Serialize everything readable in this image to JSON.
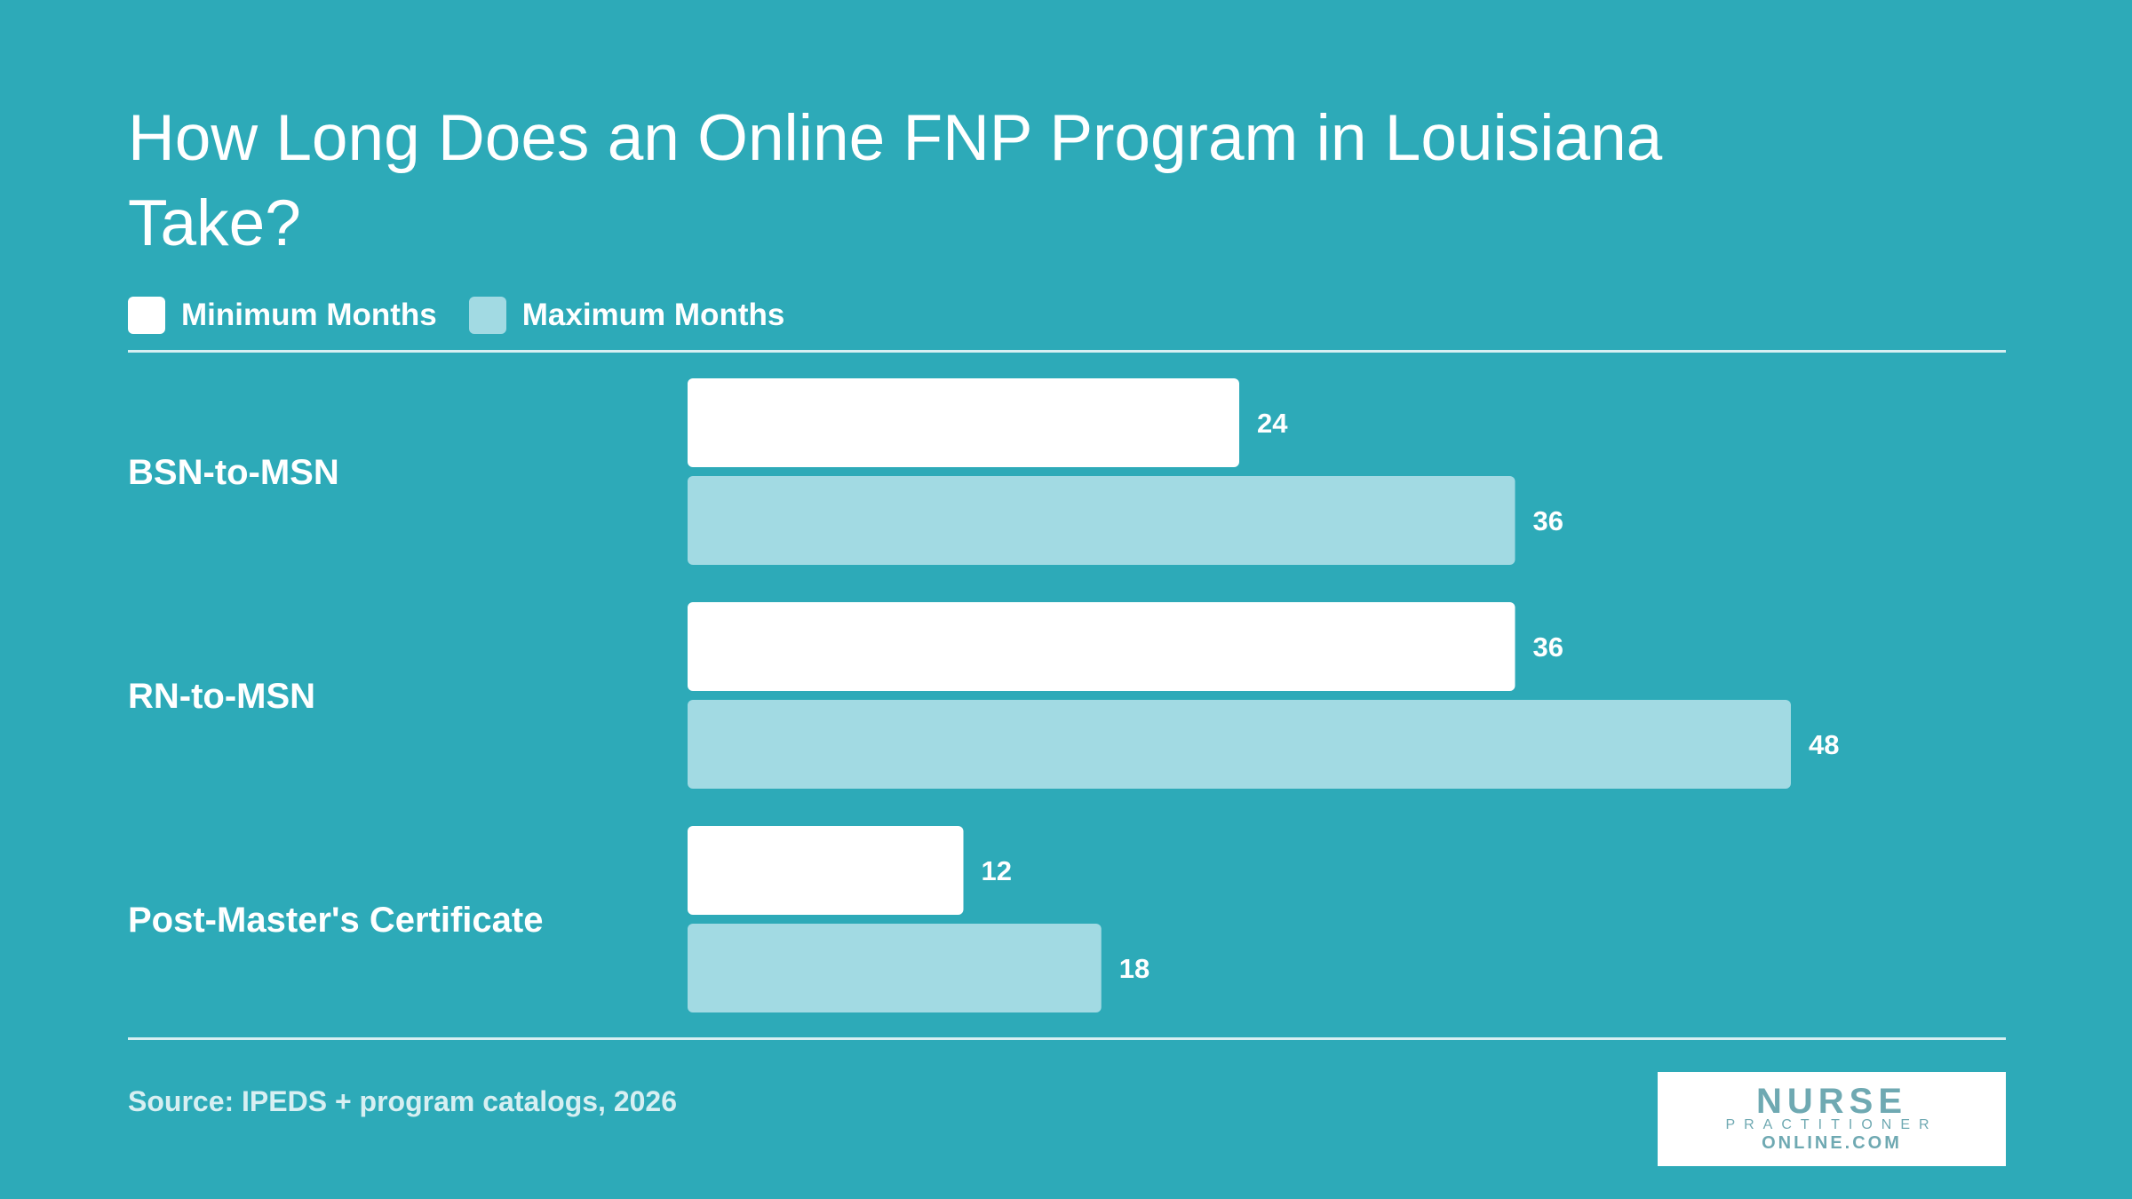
{
  "chart_data": {
    "type": "bar",
    "orientation": "horizontal",
    "title": "How Long Does an Online FNP Program in Louisiana Take?",
    "categories": [
      "BSN-to-MSN",
      "RN-to-MSN",
      "Post-Master's Certificate"
    ],
    "series": [
      {
        "name": "Minimum Months",
        "values": [
          24,
          36,
          12
        ],
        "color": "#FFFFFF"
      },
      {
        "name": "Maximum Months",
        "values": [
          36,
          48,
          18
        ],
        "color": "#A2DAE3"
      }
    ],
    "xlim": [
      0,
      48
    ],
    "grid": false,
    "legend": "top-left"
  },
  "colors": {
    "background": "#2DAAB8",
    "rule": "#D7EFF2"
  },
  "footer": {
    "source": "Source: IPEDS + program catalogs, 2026",
    "logo": {
      "line1": "NURSE",
      "line2": "PRACTITIONER",
      "line3": "ONLINE.COM"
    }
  }
}
